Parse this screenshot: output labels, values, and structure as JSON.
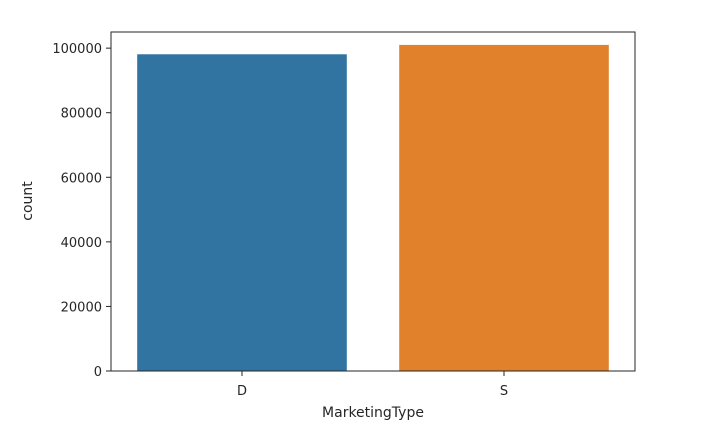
{
  "chart_data": {
    "type": "bar",
    "categories": [
      "D",
      "S"
    ],
    "values": [
      98100,
      101000
    ],
    "colors": [
      "#3274a1",
      "#e1812c"
    ],
    "title": "",
    "xlabel": "MarketingType",
    "ylabel": "count",
    "ylim": [
      0,
      105000
    ],
    "yticks": [
      0,
      20000,
      40000,
      60000,
      80000,
      100000
    ],
    "ytick_labels": [
      "0",
      "20000",
      "40000",
      "60000",
      "80000",
      "100000"
    ],
    "grid": false
  }
}
